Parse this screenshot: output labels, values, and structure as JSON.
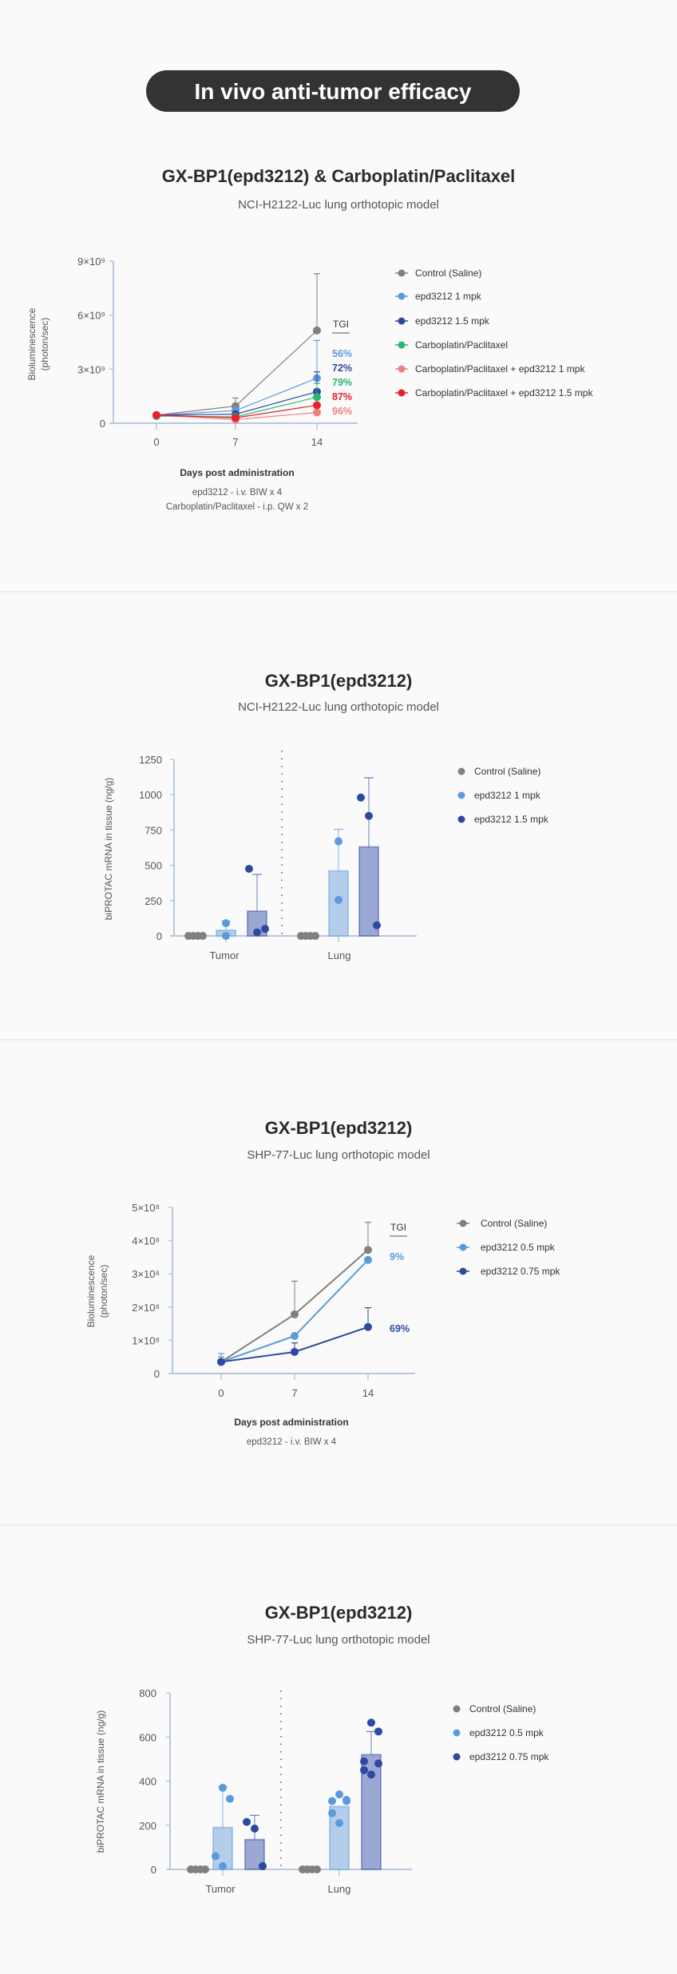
{
  "header": {
    "title": "In vivo anti-tumor efficacy",
    "pill_color": "#333333"
  },
  "chart_data": [
    {
      "type": "line",
      "title": "GX-BP1(epd3212) & Carboplatin/Paclitaxel",
      "subtitle": "NCI-H2122-Luc lung orthotopic model",
      "ylabel": [
        "Bioluminescence",
        "(photon/sec)"
      ],
      "xlabel": "Days post administration",
      "notes": [
        "epd3212 - i.v. BIW x 4",
        "Carboplatin/Paclitaxel - i.p. QW x 2"
      ],
      "x": [
        0,
        7,
        14
      ],
      "xtick_labels": [
        "0",
        "7",
        "14"
      ],
      "ylim": [
        0,
        9000000000
      ],
      "yticks": [
        0,
        3000000000,
        6000000000,
        9000000000
      ],
      "ytick_labels": [
        "0",
        "3×10⁹",
        "6×10⁹",
        "9×10⁹"
      ],
      "tgi_label": "TGI",
      "tgi": [
        {
          "value": "56%",
          "color": "#5b9bdc"
        },
        {
          "value": "72%",
          "color": "#2e4aa0"
        },
        {
          "value": "79%",
          "color": "#2bb673"
        },
        {
          "value": "87%",
          "color": "#e8202a"
        },
        {
          "value": "96%",
          "color": "#f08080"
        }
      ],
      "series": [
        {
          "name": "Control (Saline)",
          "color": "#808080",
          "values": [
            450000000,
            950000000,
            5150000000
          ],
          "err_upper": [
            null,
            1400000000,
            8300000000
          ]
        },
        {
          "name": "epd3212 1 mpk",
          "color": "#5b9bdc",
          "values": [
            450000000,
            700000000,
            2500000000
          ],
          "err_upper": [
            null,
            null,
            4600000000
          ]
        },
        {
          "name": "epd3212 1.5 mpk",
          "color": "#2e4aa0",
          "values": [
            450000000,
            500000000,
            1750000000
          ],
          "err_upper": [
            null,
            null,
            2850000000
          ]
        },
        {
          "name": "Carboplatin/Paclitaxel",
          "color": "#2bb673",
          "values": [
            400000000,
            350000000,
            1450000000
          ],
          "err_upper": [
            null,
            null,
            2200000000
          ]
        },
        {
          "name": "Carboplatin/Paclitaxel + epd3212 1 mpk",
          "color": "#f08080",
          "values": [
            450000000,
            200000000,
            600000000
          ],
          "err_upper": [
            null,
            null,
            null
          ]
        },
        {
          "name": "Carboplatin/Paclitaxel + epd3212 1.5 mpk",
          "color": "#e8202a",
          "values": [
            450000000,
            300000000,
            1000000000
          ],
          "err_upper": [
            null,
            null,
            null
          ]
        }
      ]
    },
    {
      "type": "bar",
      "title": "GX-BP1(epd3212)",
      "subtitle": "NCI-H2122-Luc lung orthotopic model",
      "ylabel": "biPROTAC mRNA in tissue (ng/g)",
      "categories": [
        "Tumor",
        "Lung"
      ],
      "ylim": [
        0,
        1250
      ],
      "yticks": [
        0,
        250,
        500,
        750,
        1000,
        1250
      ],
      "ytick_labels": [
        "0",
        "250",
        "500",
        "750",
        "1000",
        "1250"
      ],
      "series": [
        {
          "name": "Control (Saline)",
          "color": "#808080",
          "values": [
            0,
            0
          ],
          "err_upper": [
            null,
            null
          ],
          "points": [
            [
              0,
              0,
              0,
              0
            ],
            [
              0,
              0,
              0,
              0
            ]
          ]
        },
        {
          "name": "epd3212 1 mpk",
          "color": "#5b9bdc",
          "bar_color": "#b4cdea",
          "values": [
            40,
            460
          ],
          "err_upper": [
            105,
            755
          ],
          "points": [
            [
              90,
              0
            ],
            [
              670,
              255
            ]
          ]
        },
        {
          "name": "epd3212 1.5 mpk",
          "color": "#2e4aa0",
          "bar_color": "#9ba8d4",
          "values": [
            175,
            630
          ],
          "err_upper": [
            435,
            1120
          ],
          "points": [
            [
              475,
              25,
              50
            ],
            [
              980,
              850,
              75
            ]
          ]
        }
      ]
    },
    {
      "type": "line",
      "title": "GX-BP1(epd3212)",
      "subtitle": "SHP-77-Luc lung orthotopic model",
      "ylabel": [
        "Bioluminescence",
        "(photon/sec)"
      ],
      "xlabel": "Days post administration",
      "notes": [
        "epd3212 - i.v. BIW x 4"
      ],
      "x": [
        0,
        7,
        14
      ],
      "xtick_labels": [
        "0",
        "7",
        "14"
      ],
      "ylim": [
        0,
        500000000
      ],
      "yticks": [
        0,
        100000000,
        200000000,
        300000000,
        400000000,
        500000000
      ],
      "ytick_labels": [
        "0",
        "1×10⁸",
        "2×10⁸",
        "3×10⁸",
        "4×10⁸",
        "5×10⁸"
      ],
      "tgi_label": "TGI",
      "tgi": [
        {
          "value": "9%",
          "color": "#5b9bdc"
        },
        {
          "value": "69%",
          "color": "#2e4aa0"
        }
      ],
      "series": [
        {
          "name": "Control (Saline)",
          "color": "#808080",
          "values": [
            35000000,
            178000000,
            372000000
          ],
          "err_upper": [
            50000000,
            278000000,
            455000000
          ]
        },
        {
          "name": "epd3212 0.5 mpk",
          "color": "#5b9bdc",
          "values": [
            35000000,
            113000000,
            342000000
          ],
          "err_upper": [
            60000000,
            null,
            null
          ]
        },
        {
          "name": "epd3212 0.75 mpk",
          "color": "#2e4aa0",
          "values": [
            35000000,
            65000000,
            140000000
          ],
          "err_upper": [
            null,
            92000000,
            198000000
          ]
        }
      ]
    },
    {
      "type": "bar",
      "title": "GX-BP1(epd3212)",
      "subtitle": "SHP-77-Luc lung orthotopic model",
      "ylabel": "biPROTAC mRNA in tissue (ng/g)",
      "categories": [
        "Tumor",
        "Lung"
      ],
      "ylim": [
        0,
        800
      ],
      "yticks": [
        0,
        200,
        400,
        600,
        800
      ],
      "ytick_labels": [
        "0",
        "200",
        "400",
        "600",
        "800"
      ],
      "series": [
        {
          "name": "Control (Saline)",
          "color": "#808080",
          "values": [
            0,
            0
          ],
          "err_upper": [
            null,
            null
          ],
          "points": [
            [
              0,
              0,
              0,
              0
            ],
            [
              0,
              0,
              0,
              0
            ]
          ]
        },
        {
          "name": "epd3212 0.5 mpk",
          "color": "#5b9bdc",
          "bar_color": "#b4cdea",
          "values": [
            190,
            285
          ],
          "err_upper": [
            375,
            null
          ],
          "points": [
            [
              370,
              320,
              60,
              15
            ],
            [
              340,
              315,
              310,
              310,
              255,
              210
            ]
          ]
        },
        {
          "name": "epd3212 0.75 mpk",
          "color": "#2e4aa0",
          "bar_color": "#9ba8d4",
          "values": [
            135,
            520
          ],
          "err_upper": [
            245,
            625
          ],
          "points": [
            [
              215,
              185,
              15
            ],
            [
              665,
              625,
              490,
              480,
              450,
              430
            ]
          ]
        }
      ]
    }
  ]
}
